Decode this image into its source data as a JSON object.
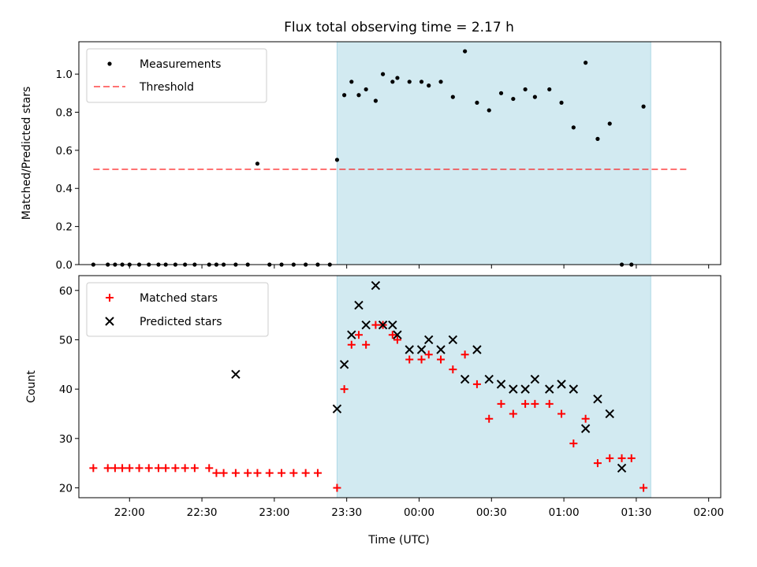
{
  "title": "Flux total observing time = 2.17 h",
  "xlabel": "Time (UTC)",
  "colors": {
    "shade": "#add8e6",
    "measurement": "#000000",
    "threshold": "#ff0000",
    "matched": "#ff0000",
    "predicted": "#000000"
  },
  "chart_data": [
    {
      "type": "scatter",
      "ylabel": "Matched/Predicted stars",
      "xlim": [
        "21:39",
        "02:05"
      ],
      "ylim": [
        0,
        1.17
      ],
      "yticks": [
        "0.0",
        "0.2",
        "0.4",
        "0.6",
        "0.8",
        "1.0"
      ],
      "xticks": [
        "22:00",
        "22:30",
        "23:00",
        "23:30",
        "00:00",
        "00:30",
        "01:00",
        "01:30",
        "02:00"
      ],
      "shaded_span": [
        "23:26",
        "01:36"
      ],
      "legend": {
        "position": "upper left",
        "entries": [
          "Measurements",
          "Threshold"
        ]
      },
      "threshold": {
        "name": "Threshold",
        "y": 0.5,
        "x": [
          "21:45",
          "01:52"
        ]
      },
      "series": [
        {
          "name": "Measurements",
          "marker": "dot",
          "x": [
            "21:45",
            "21:51",
            "21:54",
            "21:57",
            "22:00",
            "22:04",
            "22:08",
            "22:12",
            "22:15",
            "22:19",
            "22:23",
            "22:27",
            "22:33",
            "22:36",
            "22:39",
            "22:44",
            "22:49",
            "22:53",
            "22:58",
            "23:03",
            "23:08",
            "23:13",
            "23:18",
            "23:23",
            "23:26",
            "23:29",
            "23:32",
            "23:35",
            "23:38",
            "23:42",
            "23:45",
            "23:49",
            "23:51",
            "23:56",
            "00:01",
            "00:04",
            "00:09",
            "00:14",
            "00:19",
            "00:24",
            "00:29",
            "00:34",
            "00:39",
            "00:44",
            "00:48",
            "00:54",
            "00:59",
            "01:04",
            "01:09",
            "01:14",
            "01:19",
            "01:24",
            "01:28",
            "01:33",
            "01:37",
            "01:41",
            "01:47",
            "01:49",
            "01:52"
          ],
          "y": [
            0,
            0,
            0,
            0,
            0,
            0,
            0,
            0,
            0,
            0,
            0,
            0,
            0,
            0,
            0,
            0,
            0,
            0.53,
            0,
            0,
            0,
            0,
            0,
            0,
            0.55,
            0.89,
            0.96,
            0.89,
            0.92,
            0.86,
            1.0,
            0.96,
            0.98,
            0.96,
            0.96,
            0.94,
            0.96,
            0.88,
            1.12,
            0.85,
            0.81,
            0.9,
            0.87,
            0.92,
            0.88,
            0.92,
            0.85,
            0.72,
            1.06,
            0.66,
            0.74,
            0,
            0,
            0.83,
            null,
            null,
            null,
            null,
            null
          ]
        }
      ]
    },
    {
      "type": "scatter",
      "ylabel": "Count",
      "xlim": [
        "21:39",
        "02:05"
      ],
      "ylim": [
        18,
        63
      ],
      "yticks": [
        "20",
        "30",
        "40",
        "50",
        "60"
      ],
      "xticks": [
        "22:00",
        "22:30",
        "23:00",
        "23:30",
        "00:00",
        "00:30",
        "01:00",
        "01:30",
        "02:00"
      ],
      "shaded_span": [
        "23:26",
        "01:36"
      ],
      "legend": {
        "position": "upper left",
        "entries": [
          "Matched stars",
          "Predicted stars"
        ]
      },
      "series": [
        {
          "name": "Matched stars",
          "marker": "plus",
          "x": [
            "21:45",
            "21:51",
            "21:54",
            "21:57",
            "22:00",
            "22:04",
            "22:08",
            "22:12",
            "22:15",
            "22:19",
            "22:23",
            "22:27",
            "22:33",
            "22:36",
            "22:39",
            "22:44",
            "22:49",
            "22:53",
            "22:58",
            "23:03",
            "23:08",
            "23:13",
            "23:18",
            "23:26",
            "23:29",
            "23:32",
            "23:35",
            "23:38",
            "23:42",
            "23:45",
            "23:49",
            "23:51",
            "23:56",
            "00:01",
            "00:04",
            "00:09",
            "00:14",
            "00:19",
            "00:24",
            "00:29",
            "00:34",
            "00:39",
            "00:44",
            "00:48",
            "00:54",
            "00:59",
            "01:04",
            "01:09",
            "01:14",
            "01:19",
            "01:24",
            "01:28",
            "01:33",
            "01:37",
            "01:41",
            "01:47",
            "01:49",
            "01:52"
          ],
          "y": [
            24,
            24,
            24,
            24,
            24,
            24,
            24,
            24,
            24,
            24,
            24,
            24,
            24,
            23,
            23,
            23,
            23,
            23,
            23,
            23,
            23,
            23,
            23,
            20,
            40,
            49,
            51,
            49,
            53,
            53,
            51,
            50,
            46,
            46,
            47,
            46,
            44,
            47,
            41,
            34,
            37,
            35,
            37,
            37,
            37,
            35,
            29,
            34,
            25,
            26,
            26,
            26,
            20,
            null,
            null,
            null,
            null,
            null
          ]
        },
        {
          "name": "Predicted stars",
          "marker": "cross",
          "x": [
            "22:44",
            "23:26",
            "23:29",
            "23:32",
            "23:35",
            "23:38",
            "23:42",
            "23:45",
            "23:49",
            "23:51",
            "23:56",
            "00:01",
            "00:04",
            "00:09",
            "00:14",
            "00:19",
            "00:24",
            "00:29",
            "00:34",
            "00:39",
            "00:44",
            "00:48",
            "00:54",
            "00:59",
            "01:04",
            "01:09",
            "01:14",
            "01:19",
            "01:24",
            "01:28",
            "01:33",
            "01:37",
            "01:52"
          ],
          "y": [
            43,
            36,
            45,
            51,
            57,
            53,
            61,
            53,
            53,
            51,
            48,
            48,
            50,
            48,
            50,
            42,
            48,
            42,
            41,
            40,
            40,
            42,
            40,
            41,
            40,
            32,
            38,
            35,
            24,
            null,
            null,
            null,
            null
          ]
        }
      ]
    }
  ]
}
